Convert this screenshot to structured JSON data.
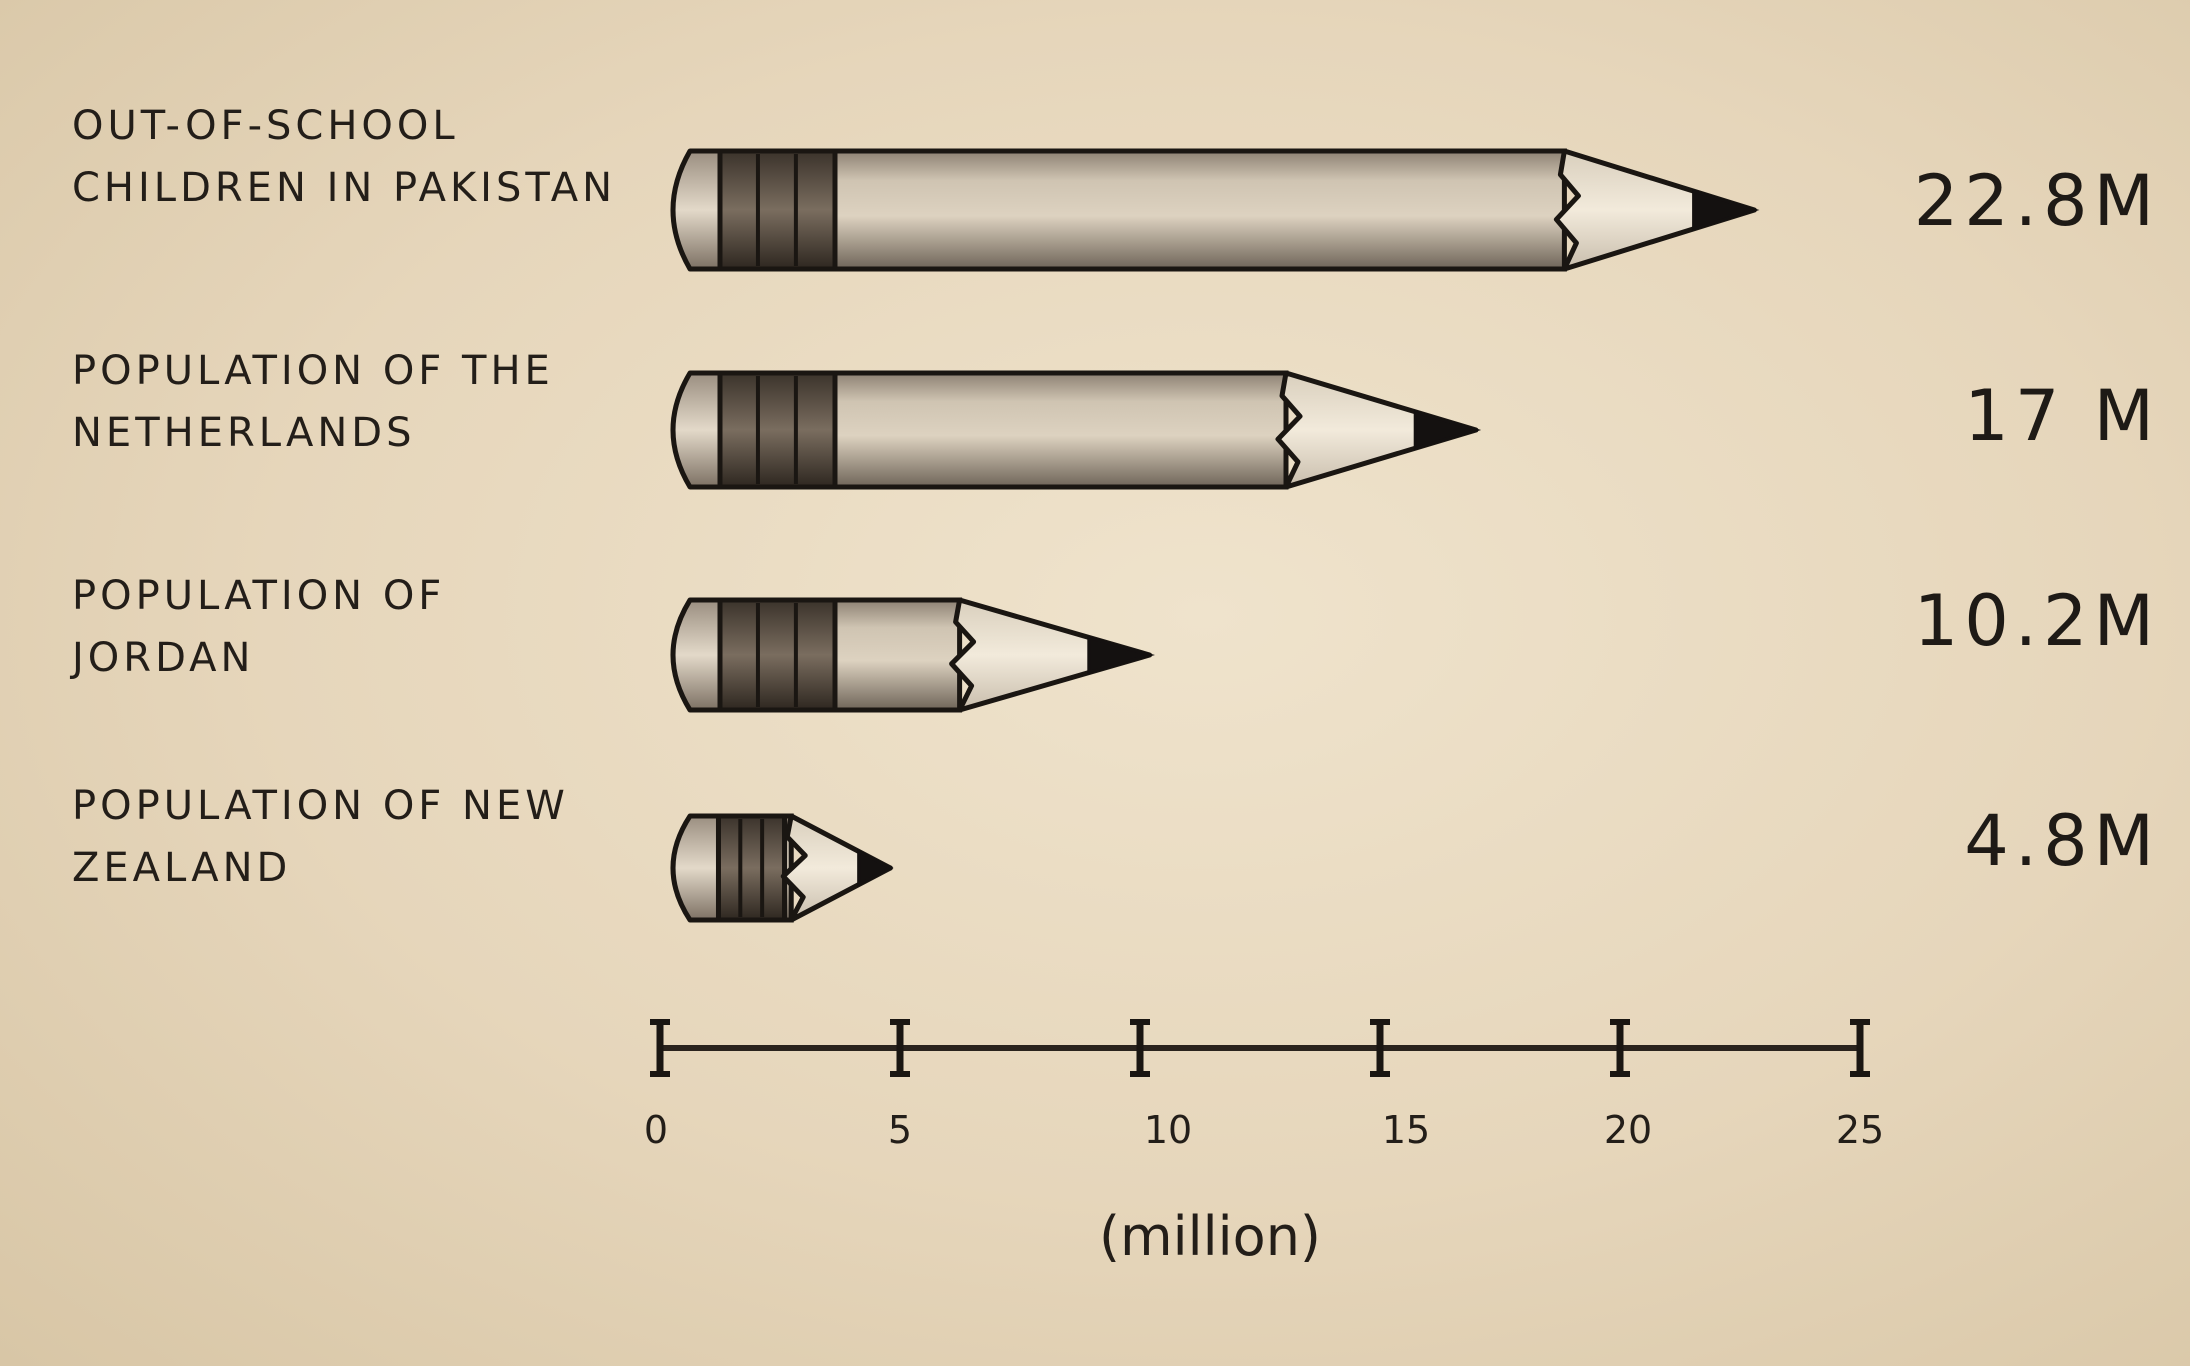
{
  "chart_data": {
    "type": "bar",
    "categories": [
      "Out-of-school children in Pakistan",
      "Population of the Netherlands",
      "Population of Jordan",
      "Population of New Zealand"
    ],
    "values": [
      22.8,
      17,
      10.2,
      4.8
    ],
    "value_labels": [
      "22.8M",
      "17 M",
      "10.2M",
      "4.8M"
    ],
    "xlabel": "(million)",
    "xlim": [
      0,
      25
    ],
    "xticks": [
      0,
      5,
      10,
      15,
      20,
      25
    ],
    "orientation": "horizontal",
    "grid": false,
    "mark": "pencil"
  }
}
